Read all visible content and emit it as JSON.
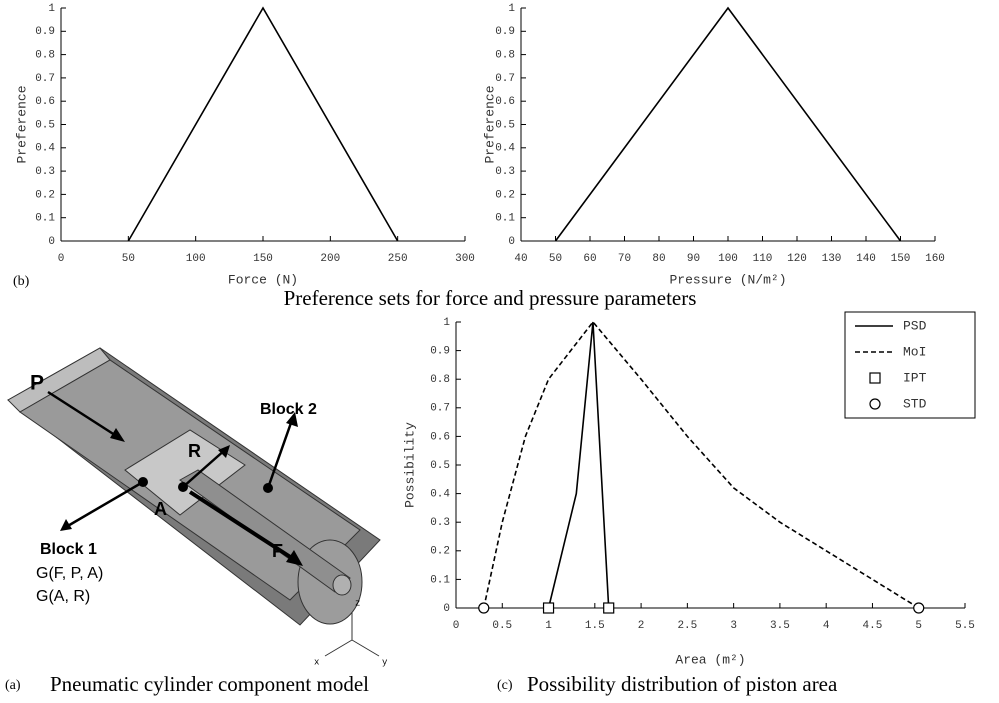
{
  "chart_data": [
    {
      "type": "line",
      "xlabel": "Force (N)",
      "ylabel": "Preference",
      "xlim": [
        0,
        300
      ],
      "xticks": [
        0,
        50,
        100,
        150,
        200,
        250,
        300
      ],
      "ylim": [
        0,
        1
      ],
      "yticks": [
        0,
        0.1,
        0.2,
        0.3,
        0.4,
        0.5,
        0.6,
        0.7,
        0.8,
        0.9,
        1
      ],
      "series": [
        {
          "color": "#000000",
          "linestyle": "solid",
          "x": [
            50,
            150,
            250
          ],
          "values": [
            0,
            1,
            0
          ]
        }
      ]
    },
    {
      "type": "line",
      "xlabel": "Pressure (N/m²)",
      "ylabel": "Preference",
      "xlim": [
        40,
        160
      ],
      "xticks": [
        40,
        50,
        60,
        70,
        80,
        90,
        100,
        110,
        120,
        130,
        140,
        150,
        160
      ],
      "ylim": [
        0,
        1
      ],
      "yticks": [
        0,
        0.1,
        0.2,
        0.3,
        0.4,
        0.5,
        0.6,
        0.7,
        0.8,
        0.9,
        1
      ],
      "series": [
        {
          "color": "#000000",
          "linestyle": "solid",
          "x": [
            50,
            100,
            150
          ],
          "values": [
            0,
            1,
            0
          ]
        }
      ]
    },
    {
      "type": "line",
      "xlabel": "Area (m²)",
      "ylabel": "Possibility",
      "legend": "upper right",
      "xlim": [
        0,
        5.5
      ],
      "xticks": [
        0,
        0.5,
        1,
        1.5,
        2,
        2.5,
        3,
        3.5,
        4,
        4.5,
        5,
        5.5
      ],
      "ylim": [
        0,
        1
      ],
      "yticks": [
        0,
        0.1,
        0.2,
        0.3,
        0.4,
        0.5,
        0.6,
        0.7,
        0.8,
        0.9,
        1
      ],
      "series": [
        {
          "name": "PSD",
          "color": "#000000",
          "linestyle": "solid",
          "x": [
            1,
            1.15,
            1.3,
            1.48,
            1.65
          ],
          "values": [
            0,
            0.2,
            0.4,
            1,
            0
          ]
        },
        {
          "name": "MoI",
          "color": "#000000",
          "linestyle": "dashed",
          "x": [
            0.3,
            0.5,
            0.75,
            1,
            1.48,
            2,
            2.5,
            3,
            3.5,
            4,
            5
          ],
          "values": [
            0,
            0.3,
            0.6,
            0.8,
            1,
            0.8,
            0.6,
            0.42,
            0.3,
            0.2,
            0
          ]
        },
        {
          "name": "IPT",
          "color": "#000000",
          "marker": "square",
          "x": [
            1,
            1.65
          ],
          "values": [
            0,
            0
          ]
        },
        {
          "name": "STD",
          "color": "#000000",
          "marker": "circle",
          "x": [
            0.3,
            5
          ],
          "values": [
            0,
            0
          ]
        }
      ]
    }
  ],
  "figure": {
    "panel_b_label": "(b)",
    "title_b": "Preference sets for force and pressure parameters",
    "panel_a_label": "(a)",
    "caption_a": "Pneumatic cylinder component model",
    "panel_c_label": "(c)",
    "caption_c": "Possibility distribution of piston area"
  },
  "diagram": {
    "labels": {
      "P": "P",
      "R": "R",
      "A": "A",
      "F": "F",
      "block2": "Block 2",
      "block1": "Block 1",
      "g1": "G(F, P, A)",
      "g2": "G(A, R)",
      "axis_z": "z",
      "axis_x": "x",
      "axis_y": "y"
    }
  }
}
